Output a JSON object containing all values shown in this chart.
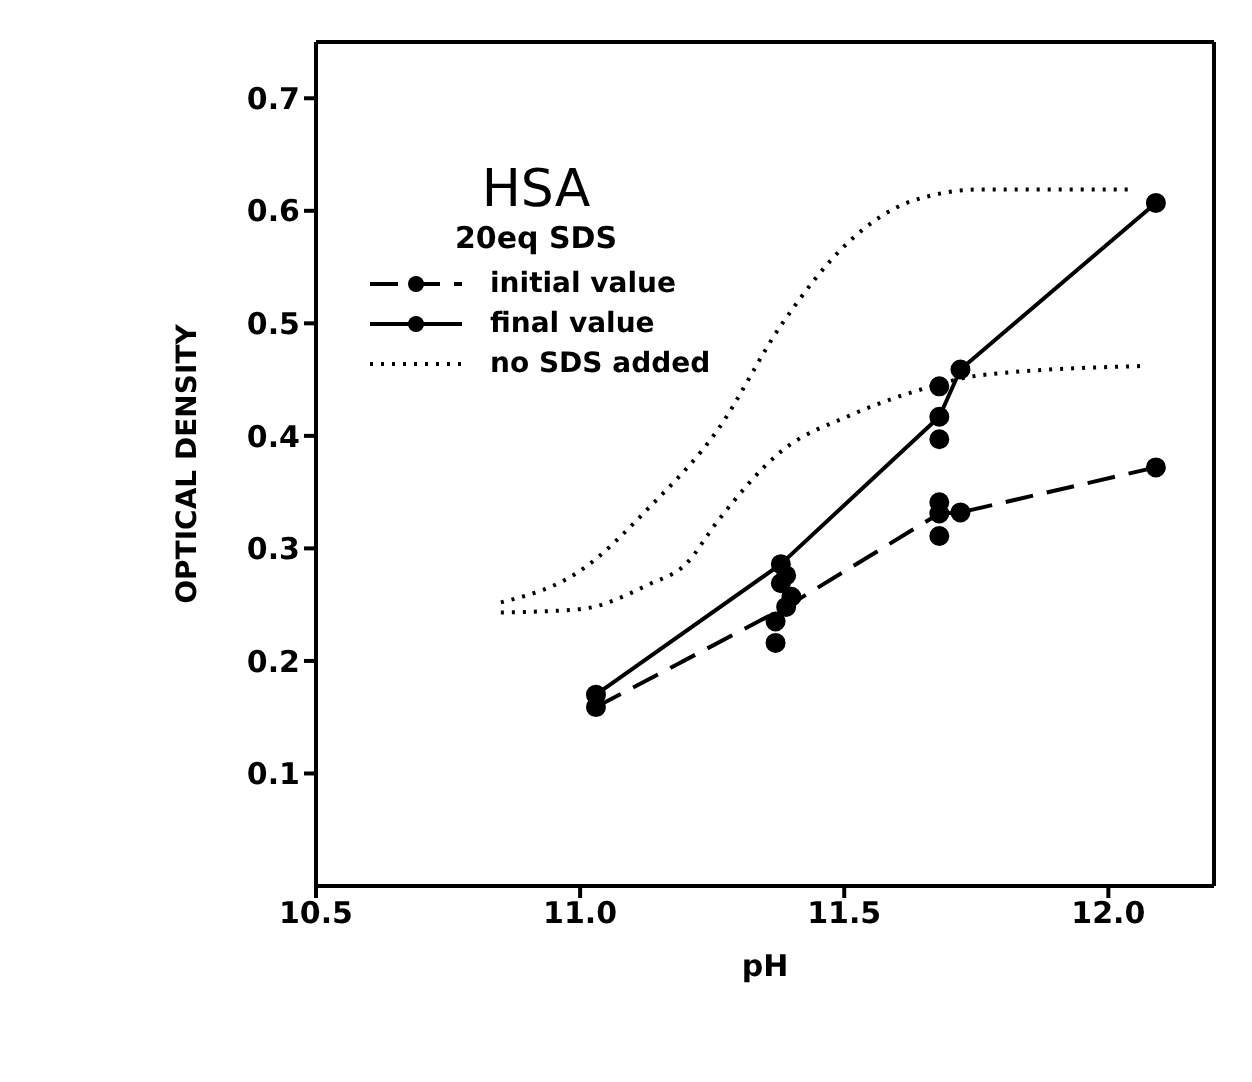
{
  "chart_data": {
    "type": "line",
    "title": "HSA",
    "subtitle": "20eq SDS",
    "xlabel": "pH",
    "ylabel": "OPTICAL DENSITY",
    "xlim": [
      10.5,
      12.2
    ],
    "ylim": [
      0,
      0.75
    ],
    "xticks": [
      10.5,
      {
        "value": 11,
        "label": "11.0"
      },
      11.5,
      {
        "value": 12,
        "label": "12.0"
      }
    ],
    "yticks": [
      0.1,
      0.2,
      0.3,
      0.4,
      0.5,
      0.6,
      0.7
    ],
    "grid": false,
    "legend": "top left",
    "series": [
      {
        "name": "initial value",
        "line_style": "dashed",
        "marker": "circle",
        "color": "#000000",
        "x": [
          11.03,
          11.39,
          11.68,
          11.72,
          12.09
        ],
        "values": [
          0.159,
          0.248,
          0.331,
          0.332,
          0.372
        ]
      },
      {
        "type": "scatter",
        "marker": "circle",
        "color": "#000000",
        "x": [
          11.37,
          11.37,
          11.38,
          11.4,
          11.68,
          11.68
        ],
        "values": [
          0.235,
          0.216,
          0.269,
          0.257,
          0.341,
          0.311
        ]
      },
      {
        "name": "final value",
        "line_style": "solid",
        "marker": "circle",
        "color": "#000000",
        "x": [
          11.03,
          11.38,
          11.68,
          11.72,
          12.09
        ],
        "values": [
          0.17,
          0.286,
          0.417,
          0.459,
          0.607
        ]
      },
      {
        "type": "scatter",
        "marker": "circle",
        "color": "#000000",
        "x": [
          11.39,
          11.68,
          11.68
        ],
        "values": [
          0.276,
          0.444,
          0.397
        ]
      },
      {
        "name": "no SDS added",
        "line_style": "dotted",
        "marker": "none",
        "color": "#000000",
        "x": [
          10.85,
          11.0,
          11.13,
          11.26,
          11.38,
          11.51,
          11.63,
          11.76,
          12.04
        ],
        "values": [
          0.252,
          0.28,
          0.336,
          0.405,
          0.498,
          0.573,
          0.609,
          0.619,
          0.619
        ]
      },
      {
        "line_style": "dotted",
        "marker": "none",
        "color": "#000000",
        "x": [
          10.85,
          11.0,
          11.13,
          11.2,
          11.26,
          11.38,
          11.51,
          11.63,
          11.76,
          12.06
        ],
        "values": [
          0.243,
          0.246,
          0.268,
          0.286,
          0.324,
          0.386,
          0.418,
          0.439,
          0.454,
          0.462
        ]
      }
    ]
  }
}
